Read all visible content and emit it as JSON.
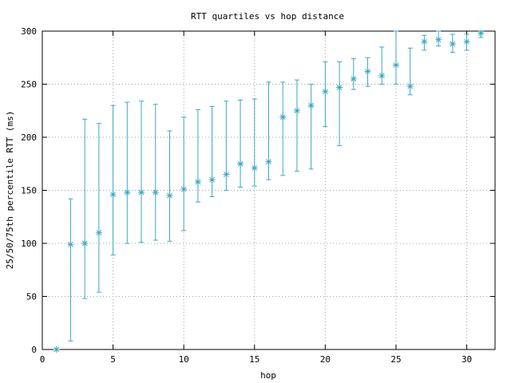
{
  "chart_data": {
    "type": "scatter",
    "title": "RTT quartiles vs hop distance",
    "xlabel": "hop",
    "ylabel": "25/50/75th percentile RTT (ms)",
    "xlim": [
      0,
      32
    ],
    "ylim": [
      0,
      300
    ],
    "xticks": [
      0,
      5,
      10,
      15,
      20,
      25,
      30
    ],
    "yticks": [
      0,
      50,
      100,
      150,
      200,
      250,
      300
    ],
    "grid": true,
    "series": [
      {
        "color": "#3aa7c7",
        "marker": "asterisk",
        "x": [
          1,
          2,
          3,
          4,
          5,
          6,
          7,
          8,
          9,
          10,
          11,
          12,
          13,
          14,
          15,
          16,
          17,
          18,
          19,
          20,
          21,
          22,
          23,
          24,
          25,
          26,
          27,
          28,
          29,
          30,
          31
        ],
        "median": [
          0,
          99,
          100,
          110,
          146,
          148,
          148,
          148,
          145,
          151,
          158,
          160,
          165,
          175,
          171,
          177,
          219,
          225,
          230,
          243,
          247,
          255,
          262,
          258,
          268,
          248,
          290,
          292,
          288,
          290,
          298
        ],
        "q25": [
          0,
          8,
          48,
          54,
          89,
          100,
          101,
          103,
          102,
          112,
          139,
          144,
          150,
          153,
          154,
          160,
          164,
          168,
          170,
          210,
          192,
          245,
          248,
          250,
          250,
          240,
          282,
          286,
          280,
          282,
          294
        ],
        "q75": [
          0,
          142,
          217,
          213,
          230,
          233,
          234,
          231,
          206,
          219,
          226,
          229,
          234,
          235,
          236,
          252,
          252,
          254,
          250,
          271,
          271,
          274,
          275,
          285,
          300,
          284,
          296,
          300,
          297,
          297,
          300
        ]
      }
    ]
  }
}
